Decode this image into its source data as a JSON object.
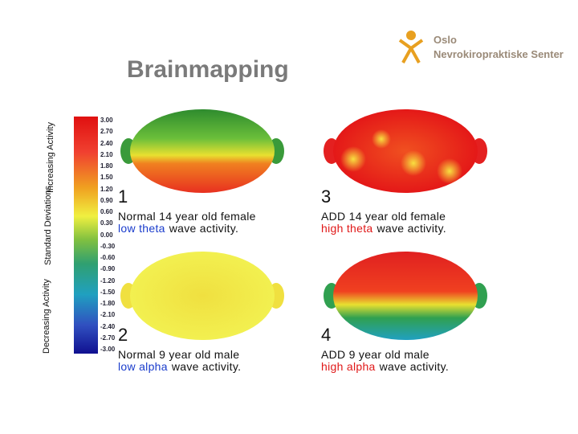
{
  "header": {
    "title": "Brainmapping",
    "logo": {
      "line1": "Oslo",
      "line2": "Nevrokiropraktiske Senter"
    }
  },
  "scale": {
    "increasing": "Increasing Activity",
    "deviations": "Standard Deviations",
    "decreasing": "Decreasing Activity",
    "ticks": [
      "3.00",
      "2.70",
      "2.40",
      "2.10",
      "1.80",
      "1.50",
      "1.20",
      "0.90",
      "0.60",
      "0.30",
      "0.00",
      "-0.30",
      "-0.60",
      "-0.90",
      "-1.20",
      "-1.50",
      "-1.80",
      "-2.10",
      "-2.40",
      "-2.70",
      "-3.00"
    ]
  },
  "maps": [
    {
      "number": "1",
      "line1": "Normal 14 year old female",
      "highlight": "low theta",
      "rest": "wave activity."
    },
    {
      "number": "2",
      "line1": "Normal 9 year old male",
      "highlight": "low alpha",
      "rest": "wave activity."
    },
    {
      "number": "3",
      "line1": "ADD 14 year old female",
      "highlight": "high theta",
      "rest": "wave activity."
    },
    {
      "number": "4",
      "line1": "ADD 9 year old male",
      "highlight": "high alpha",
      "rest": "wave activity."
    }
  ]
}
